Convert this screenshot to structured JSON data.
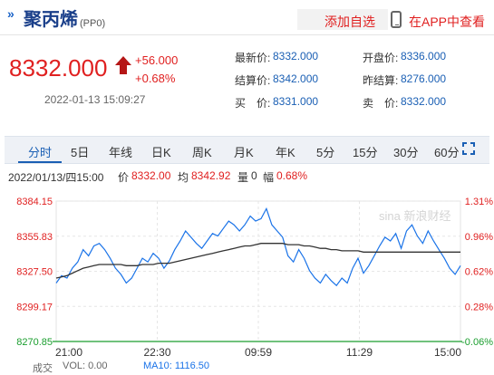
{
  "header": {
    "prefix": "»",
    "name": "聚丙烯",
    "code": "(PP0)",
    "add_watchlist": "添加自选",
    "view_in_app": "在APP中查看"
  },
  "quote": {
    "price": "8332.000",
    "change": "+56.000",
    "change_pct": "+0.68%",
    "time": "2022-01-13 15:09:27",
    "fields": [
      {
        "label": "最新价:",
        "value": "8332.000"
      },
      {
        "label": "开盘价:",
        "value": "8336.000"
      },
      {
        "label": "结算价:",
        "value": "8342.000"
      },
      {
        "label": "昨结算:",
        "value": "8276.000"
      },
      {
        "label": "买　价:",
        "value": "8331.000"
      },
      {
        "label": "卖　价:",
        "value": "8332.000"
      }
    ]
  },
  "tabs": [
    "分时",
    "5日",
    "年线",
    "日K",
    "周K",
    "月K",
    "年K",
    "5分",
    "15分",
    "30分",
    "60分"
  ],
  "active_tab": "分时",
  "info_bar": {
    "datetime": "2022/01/13/四15:00",
    "price_label": "价",
    "price": "8332.00",
    "avg_label": "均",
    "avg": "8342.92",
    "vol_label": "量",
    "vol": "0",
    "amp_label": "幅",
    "amp": "0.68%"
  },
  "watermark": "sina 新浪财经",
  "chart_data": {
    "type": "line",
    "y_ticks": [
      "8384.15",
      "8355.83",
      "8327.50",
      "8299.17",
      "8270.85"
    ],
    "y_ticks_right": [
      "1.31%",
      "0.96%",
      "0.62%",
      "0.28%",
      "-0.06%"
    ],
    "x_ticks": [
      "21:00",
      "22:30",
      "09:59",
      "11:29",
      "15:00"
    ],
    "ylim": [
      8270.85,
      8384.15
    ],
    "series": [
      {
        "name": "价",
        "color": "#1a73e8",
        "values": [
          8318,
          8324,
          8322,
          8330,
          8335,
          8345,
          8340,
          8348,
          8350,
          8345,
          8338,
          8330,
          8325,
          8318,
          8322,
          8330,
          8338,
          8335,
          8342,
          8338,
          8330,
          8336,
          8345,
          8352,
          8360,
          8355,
          8350,
          8346,
          8352,
          8358,
          8356,
          8362,
          8368,
          8365,
          8360,
          8365,
          8372,
          8368,
          8370,
          8378,
          8365,
          8360,
          8355,
          8340,
          8335,
          8345,
          8338,
          8328,
          8322,
          8318,
          8325,
          8320,
          8316,
          8322,
          8318,
          8330,
          8338,
          8326,
          8332,
          8340,
          8348,
          8355,
          8352,
          8358,
          8346,
          8360,
          8365,
          8356,
          8350,
          8360,
          8352,
          8345,
          8338,
          8330,
          8325,
          8332
        ]
      },
      {
        "name": "均",
        "color": "#333333",
        "values": [
          8322,
          8323,
          8324,
          8326,
          8328,
          8330,
          8331,
          8332,
          8333,
          8333,
          8333,
          8333,
          8333,
          8332,
          8332,
          8332,
          8333,
          8333,
          8333,
          8334,
          8334,
          8334,
          8335,
          8336,
          8337,
          8338,
          8339,
          8340,
          8341,
          8342,
          8343,
          8344,
          8345,
          8346,
          8347,
          8348,
          8348,
          8349,
          8350,
          8350,
          8350,
          8350,
          8350,
          8349,
          8349,
          8349,
          8348,
          8348,
          8347,
          8346,
          8346,
          8345,
          8345,
          8344,
          8344,
          8344,
          8344,
          8343,
          8343,
          8343,
          8343,
          8343,
          8343,
          8343,
          8343,
          8343,
          8343,
          8343,
          8343,
          8343,
          8343,
          8343,
          8343,
          8343,
          8343,
          8343
        ]
      }
    ]
  },
  "volume_bar": {
    "label": "成交",
    "vol_label": "VOL: 0.00",
    "ma_label": "MA10: 1116.50"
  },
  "colors": {
    "up": "#e02020",
    "link": "#1a5fb4",
    "price_line": "#1a73e8",
    "avg_line": "#333333",
    "zero_axis": "#1a9e2e"
  }
}
